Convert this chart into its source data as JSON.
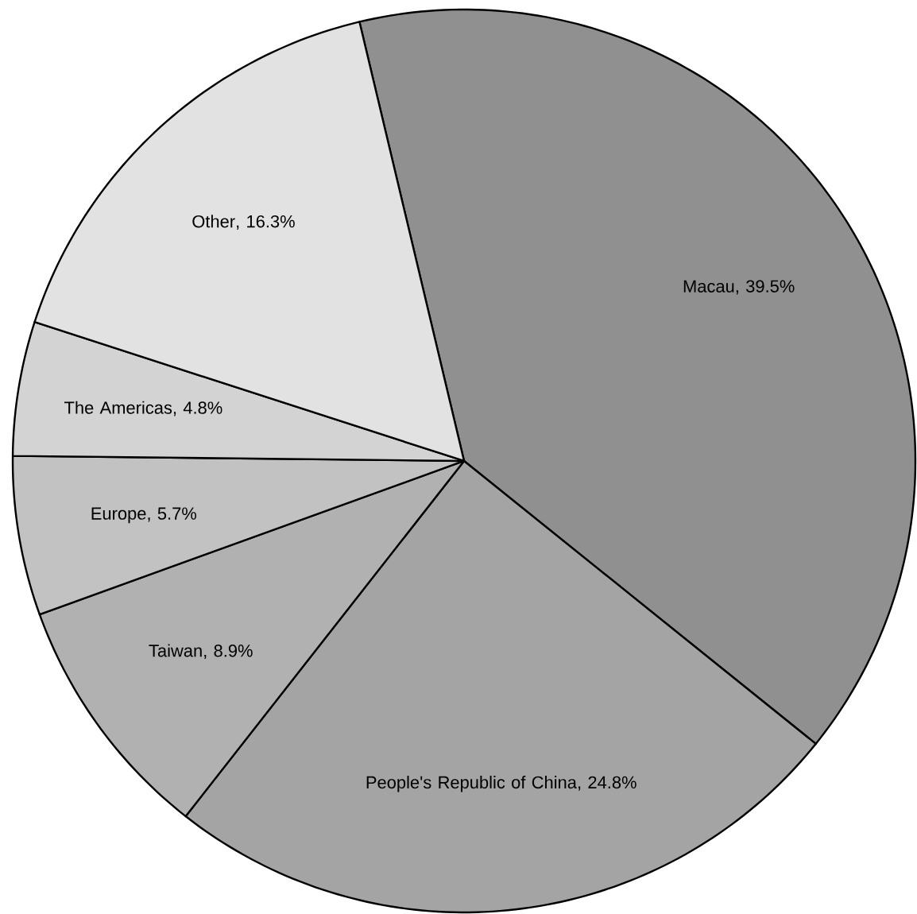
{
  "chart_data": {
    "type": "pie",
    "categories": [
      "Macau",
      "People's Republic of China",
      "Taiwan",
      "Europe",
      "The Americas",
      "Other"
    ],
    "values": [
      39.5,
      24.8,
      8.9,
      5.7,
      4.8,
      16.3
    ],
    "value_labels": [
      ", 39.5%",
      ", 24.8%",
      ", 8.9%",
      ", 5.7%",
      ", 4.8%",
      ", 16.3%"
    ],
    "colors": [
      "#8f908f",
      "#a3a4a3",
      "#b1b1b1",
      "#c2c2c2",
      "#d3d3d3",
      "#e2e2e2"
    ]
  }
}
